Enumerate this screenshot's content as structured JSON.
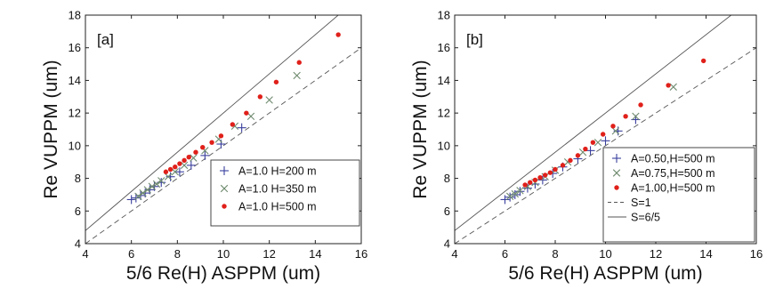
{
  "chart_data": [
    {
      "type": "scatter",
      "panel_label": "[a]",
      "xlabel": "5/6 Re(H) ASPPM (um)",
      "ylabel": "Re VUPPM (um)",
      "xlim": [
        4,
        16
      ],
      "ylim": [
        4,
        18
      ],
      "x_ticks": [
        "4",
        "6",
        "8",
        "10",
        "12",
        "14",
        "16"
      ],
      "y_ticks": [
        "4",
        "6",
        "8",
        "10",
        "12",
        "14",
        "16",
        "18"
      ],
      "grid": false,
      "legend_position": "bottom-right",
      "series": [
        {
          "name": "A=1.0 H=200 m",
          "marker": "plus",
          "color": "#3a3f9e",
          "points": [
            [
              6.0,
              6.7
            ],
            [
              6.2,
              6.8
            ],
            [
              6.4,
              6.95
            ],
            [
              6.6,
              7.1
            ],
            [
              6.8,
              7.3
            ],
            [
              7.0,
              7.5
            ],
            [
              7.3,
              7.75
            ],
            [
              7.7,
              8.1
            ],
            [
              8.1,
              8.4
            ],
            [
              8.6,
              8.8
            ],
            [
              9.2,
              9.4
            ],
            [
              9.9,
              10.1
            ],
            [
              10.8,
              11.1
            ]
          ]
        },
        {
          "name": "A=1.0 H=350 m",
          "marker": "x",
          "color": "#6e8a6e",
          "points": [
            [
              6.3,
              6.9
            ],
            [
              6.5,
              7.1
            ],
            [
              6.7,
              7.3
            ],
            [
              6.9,
              7.5
            ],
            [
              7.1,
              7.65
            ],
            [
              7.3,
              7.85
            ],
            [
              7.6,
              8.1
            ],
            [
              7.9,
              8.4
            ],
            [
              8.3,
              8.8
            ],
            [
              8.7,
              9.25
            ],
            [
              9.2,
              9.7
            ],
            [
              9.8,
              10.4
            ],
            [
              10.5,
              11.2
            ],
            [
              11.2,
              11.8
            ],
            [
              12.0,
              12.8
            ],
            [
              13.2,
              14.3
            ]
          ]
        },
        {
          "name": "A=1.0 H=500 m",
          "marker": "dot",
          "color": "#e0201a",
          "points": [
            [
              7.5,
              8.4
            ],
            [
              7.7,
              8.55
            ],
            [
              7.9,
              8.7
            ],
            [
              8.1,
              8.9
            ],
            [
              8.3,
              9.1
            ],
            [
              8.5,
              9.3
            ],
            [
              8.8,
              9.6
            ],
            [
              9.1,
              9.9
            ],
            [
              9.5,
              10.2
            ],
            [
              9.9,
              10.6
            ],
            [
              10.4,
              11.3
            ],
            [
              11.0,
              12.0
            ],
            [
              11.6,
              13.0
            ],
            [
              12.3,
              13.9
            ],
            [
              13.3,
              15.1
            ],
            [
              15.0,
              16.8
            ]
          ]
        }
      ],
      "reference_lines": [
        {
          "label": "S=1",
          "slope": 1,
          "style": "dashed",
          "color": "#555555"
        },
        {
          "label": "S=6/5",
          "slope": 1.2,
          "style": "solid",
          "color": "#555555"
        }
      ]
    },
    {
      "type": "scatter",
      "panel_label": "[b]",
      "xlabel": "5/6 Re(H) ASPPM (um)",
      "ylabel": "Re VUPPM (um)",
      "xlim": [
        4,
        16
      ],
      "ylim": [
        4,
        18
      ],
      "x_ticks": [
        "4",
        "6",
        "8",
        "10",
        "12",
        "14",
        "16"
      ],
      "y_ticks": [
        "4",
        "6",
        "8",
        "10",
        "12",
        "14",
        "16",
        "18"
      ],
      "grid": false,
      "legend_position": "bottom-right",
      "series": [
        {
          "name": "A=0.50,H=500 m",
          "marker": "plus",
          "color": "#3a3f9e",
          "points": [
            [
              6.0,
              6.7
            ],
            [
              6.2,
              6.85
            ],
            [
              6.4,
              7.0
            ],
            [
              6.6,
              7.2
            ],
            [
              6.9,
              7.4
            ],
            [
              7.2,
              7.65
            ],
            [
              7.5,
              7.9
            ],
            [
              7.9,
              8.3
            ],
            [
              8.3,
              8.7
            ],
            [
              8.9,
              9.2
            ],
            [
              9.4,
              9.7
            ],
            [
              10.0,
              10.3
            ],
            [
              10.5,
              10.9
            ],
            [
              11.2,
              11.6
            ]
          ]
        },
        {
          "name": "A=0.75,H=500 m",
          "marker": "x",
          "color": "#6e8a6e",
          "points": [
            [
              6.2,
              6.9
            ],
            [
              6.4,
              7.05
            ],
            [
              6.6,
              7.25
            ],
            [
              6.9,
              7.5
            ],
            [
              7.2,
              7.75
            ],
            [
              7.6,
              8.1
            ],
            [
              8.0,
              8.5
            ],
            [
              8.5,
              9.0
            ],
            [
              9.1,
              9.6
            ],
            [
              9.7,
              10.2
            ],
            [
              10.4,
              10.9
            ],
            [
              11.2,
              11.8
            ],
            [
              12.7,
              13.6
            ]
          ]
        },
        {
          "name": "A=1.00,H=500 m",
          "marker": "dot",
          "color": "#e0201a",
          "points": [
            [
              6.8,
              7.6
            ],
            [
              7.0,
              7.75
            ],
            [
              7.2,
              7.9
            ],
            [
              7.4,
              8.05
            ],
            [
              7.6,
              8.2
            ],
            [
              7.8,
              8.35
            ],
            [
              8.0,
              8.55
            ],
            [
              8.3,
              8.8
            ],
            [
              8.6,
              9.1
            ],
            [
              8.9,
              9.4
            ],
            [
              9.2,
              9.8
            ],
            [
              9.5,
              10.2
            ],
            [
              9.9,
              10.7
            ],
            [
              10.3,
              11.2
            ],
            [
              10.8,
              11.8
            ],
            [
              11.4,
              12.5
            ],
            [
              12.5,
              13.7
            ],
            [
              13.9,
              15.2
            ]
          ]
        }
      ],
      "reference_lines": [
        {
          "label": "S=1",
          "slope": 1,
          "style": "dashed",
          "color": "#555555"
        },
        {
          "label": "S=6/5",
          "slope": 1.2,
          "style": "solid",
          "color": "#555555"
        }
      ]
    }
  ]
}
